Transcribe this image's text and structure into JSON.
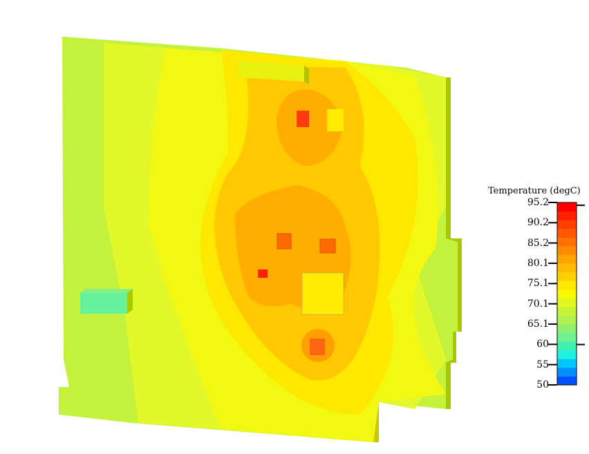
{
  "chart_data": {
    "type": "heatmap",
    "title": "",
    "colorbar": {
      "label": "Temperature (degC)",
      "min": 50,
      "max": 95.2,
      "tick_labels": [
        "95.2",
        "90.2",
        "85.2",
        "80.1",
        "75.1",
        "70.1",
        "65.1",
        "60",
        "55",
        "50"
      ],
      "tick_values": [
        95.2,
        90.2,
        85.2,
        80.1,
        75.1,
        70.1,
        65.1,
        60,
        55,
        50
      ],
      "range_markers": [
        94.5,
        60
      ],
      "colors": [
        "#0050ff",
        "#0090ff",
        "#00c8ff",
        "#20f0e0",
        "#40f0b0",
        "#70f090",
        "#90f070",
        "#b0f050",
        "#c8f238",
        "#e0f820",
        "#f8f800",
        "#ffe800",
        "#ffd000",
        "#ffbc00",
        "#ffa400",
        "#ff8c00",
        "#ff7000",
        "#ff5800",
        "#ff4000",
        "#ff2000",
        "#ff0000"
      ]
    },
    "surface_colors": {
      "cool_edge": "#c4f23c",
      "mid": "#eef81c",
      "warm": "#ffe600",
      "hot_zone": "#ffc400",
      "hotter_zone": "#ffae00",
      "component": "#ff4a10"
    }
  }
}
